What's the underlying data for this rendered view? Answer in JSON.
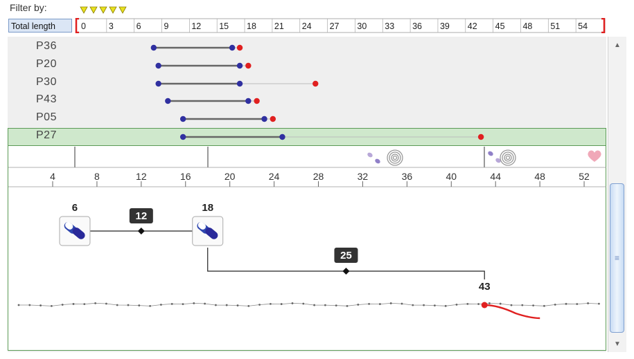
{
  "filter": {
    "label": "Filter by:",
    "field_label": "Total length",
    "marker_count": 5,
    "marker_color": "#e8e020",
    "bracket_color": "#e02020",
    "ruler_ticks": [
      "0",
      "3",
      "6",
      "9",
      "12",
      "15",
      "18",
      "21",
      "24",
      "27",
      "30",
      "33",
      "36",
      "39",
      "42",
      "45",
      "48",
      "51",
      "54"
    ]
  },
  "rows": [
    {
      "label": "P36",
      "start": 7.9,
      "mid": 16.2,
      "end": 17.0,
      "selected": false
    },
    {
      "label": "P20",
      "start": 8.4,
      "mid": 17.0,
      "end": 17.9,
      "selected": false
    },
    {
      "label": "P30",
      "start": 8.4,
      "mid": 17.0,
      "end": 25.0,
      "selected": false
    },
    {
      "label": "P43",
      "start": 9.4,
      "mid": 17.9,
      "end": 18.8,
      "selected": false
    },
    {
      "label": "P05",
      "start": 11.0,
      "mid": 19.6,
      "end": 20.5,
      "selected": false
    },
    {
      "label": "P27",
      "start": 11.0,
      "mid": 21.5,
      "end": 42.5,
      "selected": true
    }
  ],
  "colors": {
    "start_dot": "#3030a0",
    "mid_dot": "#3030a0",
    "end_dot": "#e02020",
    "selected_bg": "#cfe8cc",
    "selected_border": "#5a9a55"
  },
  "timeline_axis": {
    "ticks": [
      "4",
      "8",
      "12",
      "16",
      "20",
      "24",
      "28",
      "32",
      "36",
      "40",
      "44",
      "48",
      "52"
    ]
  },
  "events": [
    {
      "label": "6",
      "value": 6,
      "icon": "pill-capsule-icon"
    },
    {
      "label": "18",
      "value": 18,
      "icon": "pill-capsule-icon"
    }
  ],
  "intervals": [
    {
      "label": "12"
    },
    {
      "label": "25"
    }
  ],
  "end_event": {
    "label": "43",
    "value": 43
  },
  "scrollbar": {
    "grip": "≡"
  }
}
